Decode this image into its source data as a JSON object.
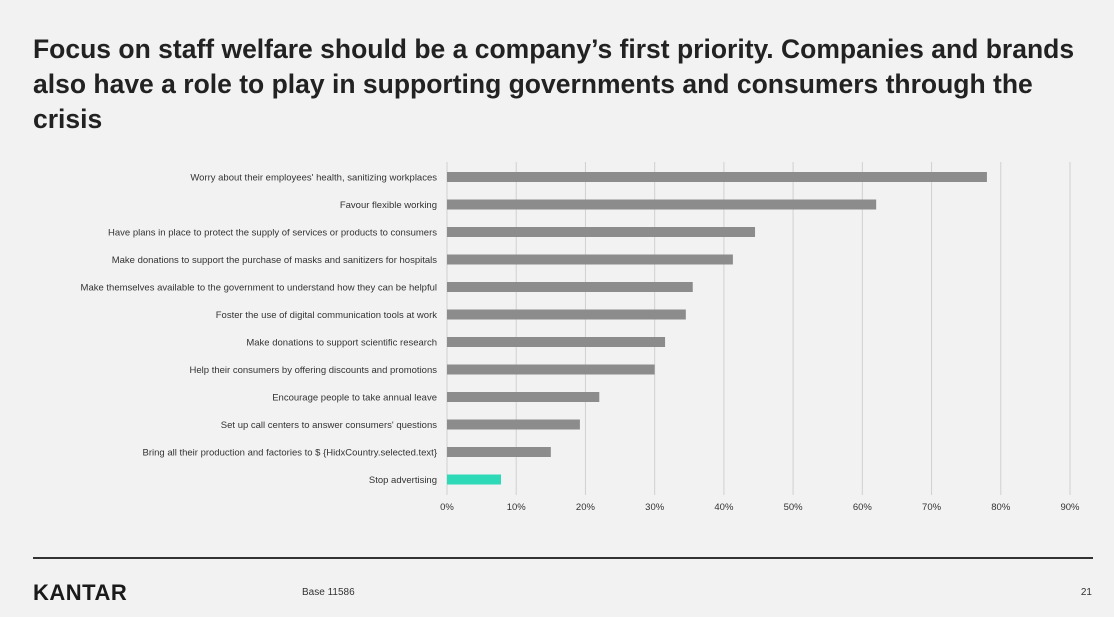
{
  "slide": {
    "title": "Focus on staff welfare should be a company’s first priority.  Companies and brands also have a role to play in supporting governments and consumers through the crisis",
    "logo_text": "KANTAR",
    "base_note": "Base 11586",
    "page_number": "21"
  },
  "colors": {
    "bar_default": "#8c8c8c",
    "bar_highlight": "#2ed9b8",
    "gridline": "#d0d0d0",
    "background": "#f2f2f2"
  },
  "chart_data": {
    "type": "bar",
    "orientation": "horizontal",
    "categories": [
      "Worry about their employees' health, sanitizing workplaces",
      "Favour flexible working",
      "Have plans in place to protect the supply of services or products to consumers",
      "Make donations to support the purchase of masks and sanitizers for hospitals",
      "Make themselves available to the government to understand how they can be helpful",
      "Foster the use of digital communication tools at work",
      "Make donations to support scientific research",
      "Help their consumers by offering discounts and promotions",
      "Encourage people to take annual leave",
      "Set up call centers to answer consumers' questions",
      "Bring all their production and factories to $ {HidxCountry.selected.text}",
      "Stop advertising"
    ],
    "values": [
      78,
      62,
      44.5,
      41.3,
      35.5,
      34.5,
      31.5,
      30,
      22,
      19.2,
      15,
      7.8
    ],
    "highlight_index": 11,
    "xlim": [
      0,
      90
    ],
    "x_ticks": [
      0,
      10,
      20,
      30,
      40,
      50,
      60,
      70,
      80,
      90
    ],
    "tick_suffix": "%",
    "grid": true,
    "legend": "none",
    "xlabel": "",
    "ylabel": ""
  }
}
